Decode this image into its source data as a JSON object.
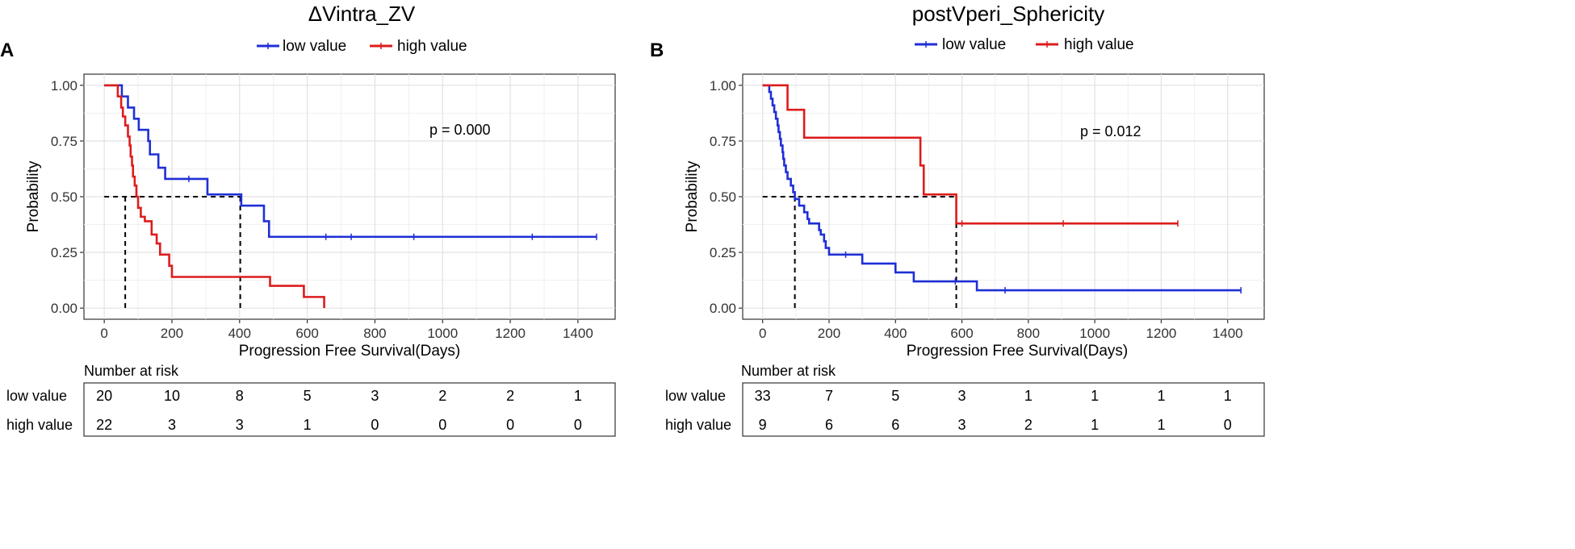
{
  "chart_data": [
    {
      "type": "line",
      "subtype": "kaplan-meier",
      "panel_label": "A",
      "title": "ΔVintra_ZV",
      "xlabel": "Progression Free Survival(Days)",
      "ylabel": "Probability",
      "xlim": [
        -60,
        1510
      ],
      "ylim": [
        -0.05,
        1.05
      ],
      "x_ticks": [
        0,
        200,
        400,
        600,
        800,
        1000,
        1200,
        1400
      ],
      "y_ticks": [
        0,
        0.25,
        0.5,
        0.75,
        1.0
      ],
      "y_tick_labels": [
        "0.00",
        "0.25",
        "0.50",
        "0.75",
        "1.00"
      ],
      "legend_position": "top",
      "annotation": "p = 0.000",
      "median_lines": [
        {
          "x": 62,
          "y": 0.5
        },
        {
          "x": 402,
          "y": 0.5
        }
      ],
      "series": [
        {
          "name": "low value",
          "color": "#1f2fd6",
          "steps": [
            [
              0,
              1.0
            ],
            [
              40,
              1.0
            ],
            [
              52,
              0.95
            ],
            [
              70,
              0.9
            ],
            [
              88,
              0.85
            ],
            [
              102,
              0.8
            ],
            [
              130,
              0.75
            ],
            [
              135,
              0.69
            ],
            [
              160,
              0.63
            ],
            [
              180,
              0.58
            ],
            [
              305,
              0.51
            ],
            [
              405,
              0.46
            ],
            [
              472,
              0.39
            ],
            [
              487,
              0.32
            ],
            [
              1455,
              0.32
            ]
          ],
          "censor_x": [
            250,
            655,
            730,
            915,
            1265,
            1455
          ]
        },
        {
          "name": "high value",
          "color": "#dd1c1c",
          "steps": [
            [
              0,
              1.0
            ],
            [
              40,
              0.95
            ],
            [
              50,
              0.9
            ],
            [
              55,
              0.86
            ],
            [
              62,
              0.82
            ],
            [
              70,
              0.77
            ],
            [
              75,
              0.73
            ],
            [
              78,
              0.68
            ],
            [
              82,
              0.64
            ],
            [
              85,
              0.59
            ],
            [
              90,
              0.55
            ],
            [
              95,
              0.5
            ],
            [
              100,
              0.45
            ],
            [
              108,
              0.41
            ],
            [
              120,
              0.39
            ],
            [
              140,
              0.33
            ],
            [
              155,
              0.29
            ],
            [
              165,
              0.24
            ],
            [
              192,
              0.19
            ],
            [
              200,
              0.14
            ],
            [
              490,
              0.1
            ],
            [
              590,
              0.05
            ],
            [
              650,
              0.0
            ]
          ],
          "censor_x": []
        }
      ],
      "risk_table": {
        "title": "Number at risk",
        "time_points": [
          0,
          200,
          400,
          600,
          800,
          1000,
          1200,
          1400
        ],
        "rows": [
          {
            "label": "low value",
            "values": [
              "20",
              "10",
              "8",
              "5",
              "3",
              "2",
              "2",
              "1"
            ]
          },
          {
            "label": "high value",
            "values": [
              "22",
              "3",
              "3",
              "1",
              "0",
              "0",
              "0",
              "0"
            ]
          }
        ]
      }
    },
    {
      "type": "line",
      "subtype": "kaplan-meier",
      "panel_label": "B",
      "title": "postVperi_Sphericity",
      "xlabel": "Progression Free Survival(Days)",
      "ylabel": "Probability",
      "xlim": [
        -60,
        1510
      ],
      "ylim": [
        -0.05,
        1.05
      ],
      "x_ticks": [
        0,
        200,
        400,
        600,
        800,
        1000,
        1200,
        1400
      ],
      "y_ticks": [
        0,
        0.25,
        0.5,
        0.75,
        1.0
      ],
      "y_tick_labels": [
        "0.00",
        "0.25",
        "0.50",
        "0.75",
        "1.00"
      ],
      "legend_position": "top",
      "annotation": "p = 0.012",
      "median_lines": [
        {
          "x": 97,
          "y": 0.5
        },
        {
          "x": 583,
          "y": 0.5
        }
      ],
      "series": [
        {
          "name": "low value",
          "color": "#1f2fd6",
          "steps": [
            [
              0,
              1.0
            ],
            [
              20,
              0.97
            ],
            [
              25,
              0.94
            ],
            [
              30,
              0.91
            ],
            [
              35,
              0.88
            ],
            [
              40,
              0.85
            ],
            [
              45,
              0.82
            ],
            [
              48,
              0.79
            ],
            [
              52,
              0.76
            ],
            [
              55,
              0.73
            ],
            [
              60,
              0.7
            ],
            [
              62,
              0.67
            ],
            [
              65,
              0.64
            ],
            [
              70,
              0.61
            ],
            [
              75,
              0.58
            ],
            [
              85,
              0.55
            ],
            [
              92,
              0.52
            ],
            [
              97,
              0.49
            ],
            [
              110,
              0.46
            ],
            [
              125,
              0.43
            ],
            [
              135,
              0.4
            ],
            [
              140,
              0.38
            ],
            [
              170,
              0.35
            ],
            [
              175,
              0.33
            ],
            [
              185,
              0.3
            ],
            [
              190,
              0.27
            ],
            [
              200,
              0.24
            ],
            [
              300,
              0.2
            ],
            [
              400,
              0.16
            ],
            [
              455,
              0.12
            ],
            [
              645,
              0.08
            ],
            [
              1440,
              0.08
            ]
          ],
          "censor_x": [
            250,
            580,
            730,
            1440
          ]
        },
        {
          "name": "high value",
          "color": "#dd1c1c",
          "steps": [
            [
              0,
              1.0
            ],
            [
              75,
              0.89
            ],
            [
              125,
              0.765
            ],
            [
              475,
              0.64
            ],
            [
              485,
              0.51
            ],
            [
              583,
              0.38
            ],
            [
              1250,
              0.38
            ]
          ],
          "censor_x": [
            600,
            905,
            1250
          ]
        }
      ],
      "risk_table": {
        "title": "Number at risk",
        "time_points": [
          0,
          200,
          400,
          600,
          800,
          1000,
          1200,
          1400
        ],
        "rows": [
          {
            "label": "low value",
            "values": [
              "33",
              "7",
              "5",
              "3",
              "1",
              "1",
              "1",
              "1"
            ]
          },
          {
            "label": "high value",
            "values": [
              "9",
              "6",
              "6",
              "3",
              "2",
              "1",
              "1",
              "0"
            ]
          }
        ]
      }
    }
  ]
}
